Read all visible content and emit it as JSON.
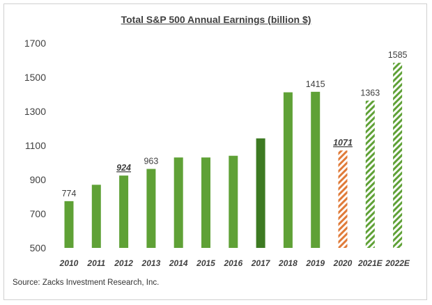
{
  "chart_data": {
    "type": "bar",
    "title": "Total S&P 500 Annual Earnings (billion $)",
    "source": "Source: Zacks Investment Research, Inc.",
    "categories": [
      "2010",
      "2011",
      "2012",
      "2013",
      "2014",
      "2015",
      "2016",
      "2017",
      "2018",
      "2019",
      "2020",
      "2021E",
      "2022E"
    ],
    "values": [
      774,
      870,
      924,
      963,
      1030,
      1030,
      1040,
      1142,
      1412,
      1415,
      1071,
      1363,
      1585
    ],
    "data_labels": [
      "774",
      "",
      "924",
      "963",
      "",
      "",
      "",
      "",
      "",
      "1415",
      "1071",
      "1363",
      "1585"
    ],
    "emphasized_labels": [
      "924",
      "1071"
    ],
    "bar_styles": [
      "solid",
      "solid",
      "solid",
      "solid",
      "solid",
      "solid",
      "solid",
      "dark",
      "solid",
      "solid",
      "hatched-orange",
      "hatched-green",
      "hatched-green"
    ],
    "colors": {
      "solid": "#5FA136",
      "dark": "#3D7A22",
      "hatched-orange": "#E07B39",
      "hatched-green": "#5FA136"
    },
    "ylim": [
      500,
      1700
    ],
    "yticks": [
      "500",
      "700",
      "900",
      "1100",
      "1300",
      "1500",
      "1700"
    ],
    "grid": false,
    "xlabel": "",
    "ylabel": ""
  }
}
